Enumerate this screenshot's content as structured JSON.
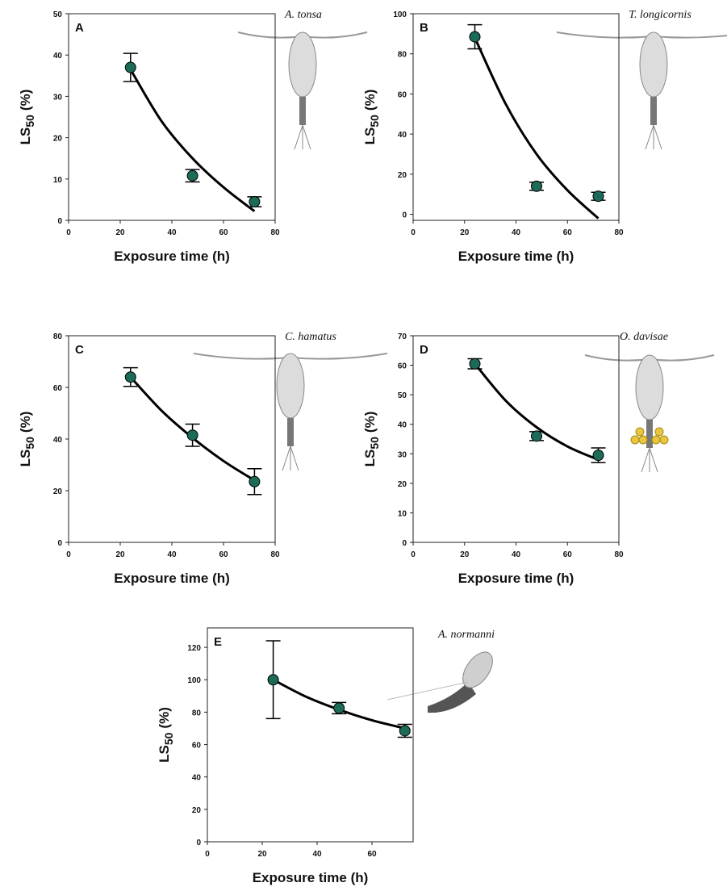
{
  "chart_data": [
    {
      "type": "scatter",
      "panel": "A",
      "species": "A. tonsa",
      "x_label": "Exposure time (h)",
      "y_label": {
        "main": "LS",
        "sub": "50",
        "unit": "(%)"
      },
      "xlim": [
        0,
        80
      ],
      "xticks": [
        0,
        20,
        40,
        60,
        80
      ],
      "ylim": [
        0,
        50
      ],
      "yticks": [
        0,
        10,
        20,
        30,
        40,
        50
      ],
      "points": {
        "color": "#1b6b58",
        "x": [
          24,
          48,
          72
        ],
        "values": [
          37,
          10.8,
          4.5
        ],
        "errors": [
          3.4,
          1.5,
          1.2
        ]
      },
      "fit": {
        "x": [
          24,
          36,
          48,
          60,
          72
        ],
        "values": [
          36.5,
          24,
          15,
          8,
          2.2
        ]
      }
    },
    {
      "type": "scatter",
      "panel": "B",
      "species": "T. longicornis",
      "x_label": "Exposure time (h)",
      "y_label": {
        "main": "LS",
        "sub": "50",
        "unit": "(%)"
      },
      "xlim": [
        0,
        80
      ],
      "xticks": [
        0,
        20,
        40,
        60,
        80
      ],
      "ylim": [
        -3,
        100
      ],
      "yticks": [
        0,
        20,
        40,
        60,
        80,
        100
      ],
      "points": {
        "color": "#1b6b58",
        "x": [
          24,
          48,
          72
        ],
        "values": [
          88.5,
          14,
          9
        ],
        "errors": [
          6,
          2,
          2
        ]
      },
      "fit": {
        "x": [
          24,
          36,
          48,
          60,
          72
        ],
        "values": [
          88,
          55,
          30,
          12,
          -2
        ]
      }
    },
    {
      "type": "scatter",
      "panel": "C",
      "species": "C. hamatus",
      "x_label": "Exposure time (h)",
      "y_label": {
        "main": "LS",
        "sub": "50",
        "unit": "(%)"
      },
      "xlim": [
        0,
        80
      ],
      "xticks": [
        0,
        20,
        40,
        60,
        80
      ],
      "ylim": [
        0,
        80
      ],
      "yticks": [
        0,
        20,
        40,
        60,
        80
      ],
      "points": {
        "color": "#1b6b58",
        "x": [
          24,
          48,
          72
        ],
        "values": [
          64,
          41.5,
          23.5
        ],
        "errors": [
          3.6,
          4.3,
          5
        ]
      },
      "fit": {
        "x": [
          24,
          36,
          48,
          60,
          72
        ],
        "values": [
          64,
          51,
          40.5,
          31.5,
          24
        ]
      }
    },
    {
      "type": "scatter",
      "panel": "D",
      "species": "O. davisae",
      "x_label": "Exposure time (h)",
      "y_label": {
        "main": "LS",
        "sub": "50",
        "unit": "(%)"
      },
      "xlim": [
        0,
        80
      ],
      "xticks": [
        0,
        20,
        40,
        60,
        80
      ],
      "ylim": [
        0,
        70
      ],
      "yticks": [
        0,
        10,
        20,
        30,
        40,
        50,
        60,
        70
      ],
      "points": {
        "color": "#1b6b58",
        "x": [
          24,
          48,
          72
        ],
        "values": [
          60.5,
          36,
          29.5
        ],
        "errors": [
          1.7,
          1.5,
          2.5
        ]
      },
      "fit": {
        "x": [
          24,
          36,
          48,
          60,
          72
        ],
        "values": [
          60.5,
          48,
          39,
          32.5,
          28
        ]
      }
    },
    {
      "type": "scatter",
      "panel": "E",
      "species": "A. normanni",
      "x_label": "Exposure time (h)",
      "y_label": {
        "main": "LS",
        "sub": "50",
        "unit": "(%)"
      },
      "xlim": [
        0,
        75
      ],
      "xticks": [
        0,
        20,
        40,
        60
      ],
      "ylim": [
        0,
        132
      ],
      "yticks": [
        0,
        20,
        40,
        60,
        80,
        100,
        120
      ],
      "points": {
        "color": "#1b6b58",
        "x": [
          24,
          48,
          72
        ],
        "values": [
          100,
          82.5,
          68.5
        ],
        "errors": [
          24,
          3.5,
          4
        ]
      },
      "fit": {
        "x": [
          24,
          36,
          48,
          60,
          72
        ],
        "values": [
          100,
          89.5,
          81.5,
          75,
          70
        ]
      }
    }
  ]
}
